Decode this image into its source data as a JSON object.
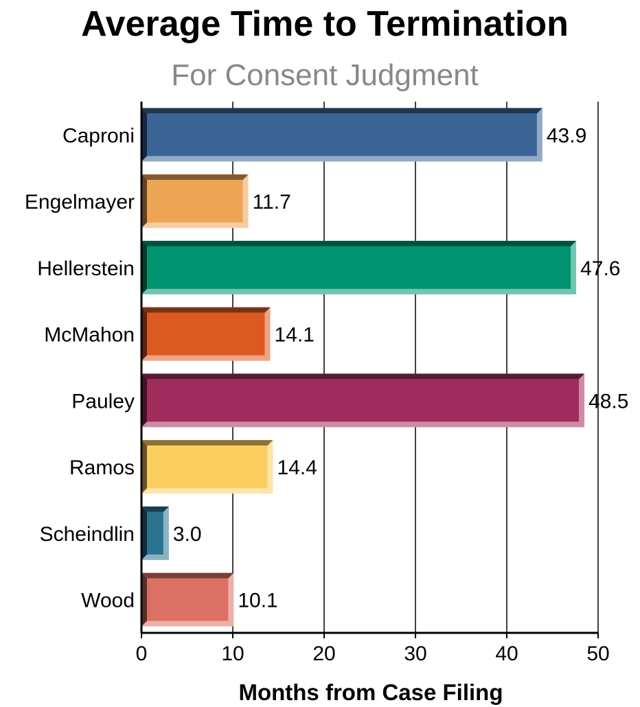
{
  "chart_data": {
    "type": "bar",
    "orientation": "horizontal",
    "title": "Average Time to Termination",
    "subtitle": "For Consent Judgment",
    "xlabel": "Months from Case Filing",
    "ylabel": "",
    "xlim": [
      0,
      50
    ],
    "xticks": [
      "0",
      "10",
      "20",
      "30",
      "40",
      "50"
    ],
    "grid": true,
    "categories": [
      "Caproni",
      "Engelmayer",
      "Hellerstein",
      "McMahon",
      "Pauley",
      "Ramos",
      "Scheindlin",
      "Wood"
    ],
    "values": [
      43.9,
      11.7,
      47.6,
      14.1,
      48.5,
      14.4,
      3.0,
      10.1
    ],
    "value_labels": [
      "43.9",
      "11.7",
      "47.6",
      "14.1",
      "48.5",
      "14.4",
      "3.0",
      "10.1"
    ],
    "colors": [
      "#3a6496",
      "#eea455",
      "#009470",
      "#dc5a22",
      "#a22c5e",
      "#fcce60",
      "#2a7490",
      "#dc7064"
    ]
  }
}
